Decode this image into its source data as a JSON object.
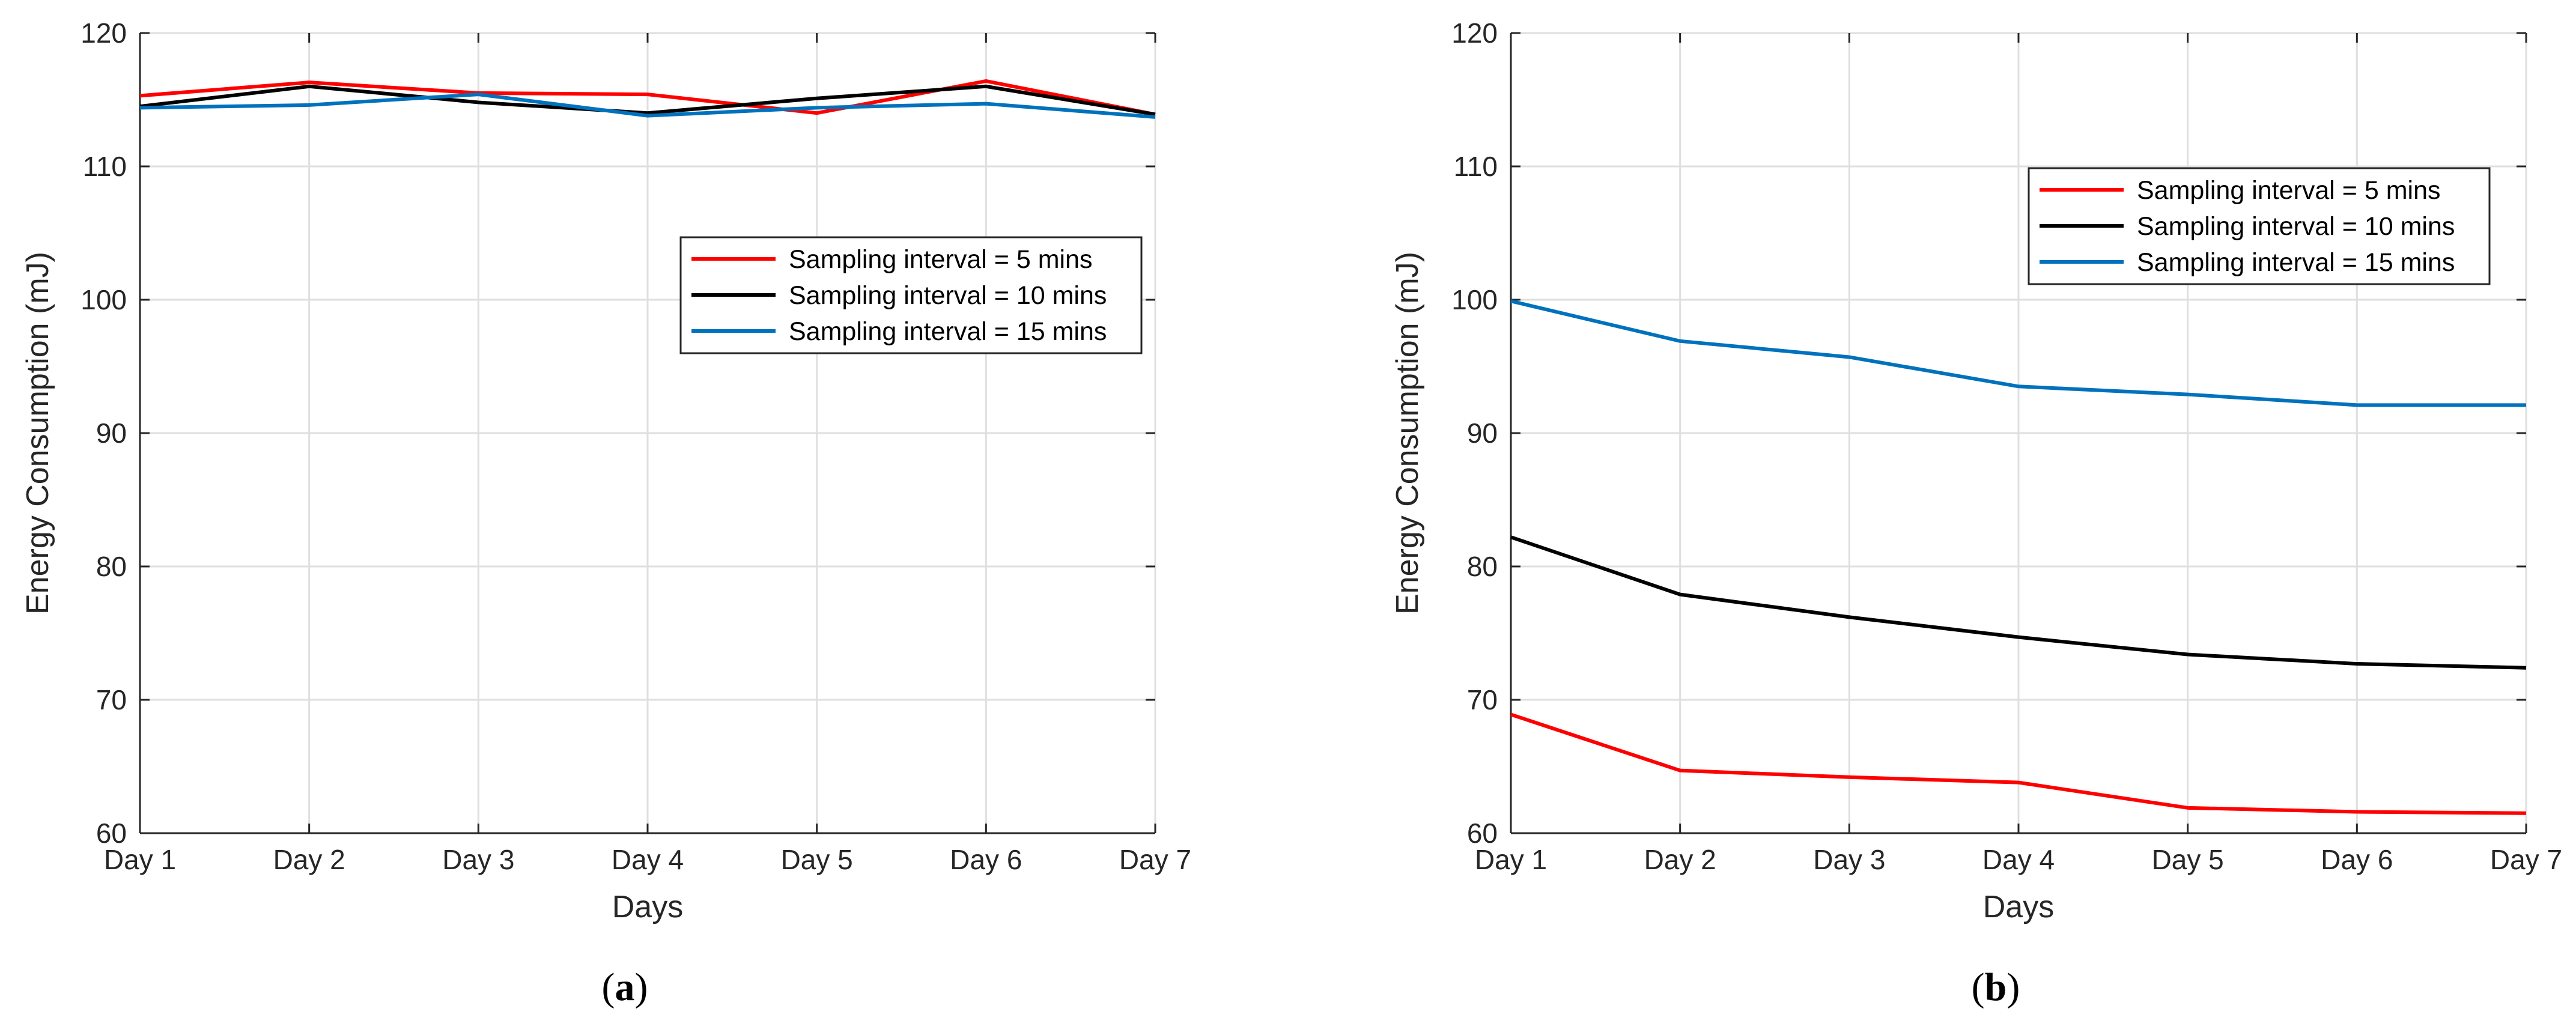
{
  "chart_data": [
    {
      "type": "line",
      "caption_letter": "a",
      "caption_open": "(",
      "caption_close": ")",
      "xlabel": "Days",
      "ylabel": "Energy Consumption (mJ)",
      "categories": [
        "Day 1",
        "Day 2",
        "Day 3",
        "Day 4",
        "Day 5",
        "Day 6",
        "Day 7"
      ],
      "ylim": [
        60,
        120
      ],
      "yticks": [
        "60",
        "70",
        "80",
        "90",
        "100",
        "110",
        "120"
      ],
      "grid": true,
      "legend_position": "center-right",
      "series": [
        {
          "name": "Sampling interval = 5 mins",
          "color": "#ff0000",
          "values": [
            115.3,
            116.3,
            115.5,
            115.4,
            114.0,
            116.4,
            113.9
          ]
        },
        {
          "name": "Sampling interval = 10 mins",
          "color": "#000000",
          "values": [
            114.5,
            116.0,
            114.8,
            114.0,
            115.1,
            116.0,
            113.9
          ]
        },
        {
          "name": "Sampling interval = 15 mins",
          "color": "#0072bd",
          "values": [
            114.4,
            114.6,
            115.4,
            113.8,
            114.4,
            114.7,
            113.7
          ]
        }
      ]
    },
    {
      "type": "line",
      "caption_letter": "b",
      "caption_open": "(",
      "caption_close": ")",
      "xlabel": "Days",
      "ylabel": "Energy Consumption (mJ)",
      "categories": [
        "Day 1",
        "Day 2",
        "Day 3",
        "Day 4",
        "Day 5",
        "Day 6",
        "Day 7"
      ],
      "ylim": [
        60,
        120
      ],
      "yticks": [
        "60",
        "70",
        "80",
        "90",
        "100",
        "110",
        "120"
      ],
      "grid": true,
      "legend_position": "top-right",
      "series": [
        {
          "name": "Sampling interval = 5 mins",
          "color": "#ff0000",
          "values": [
            68.9,
            64.7,
            64.2,
            63.8,
            61.9,
            61.6,
            61.5
          ]
        },
        {
          "name": "Sampling interval = 10 mins",
          "color": "#000000",
          "values": [
            82.2,
            77.9,
            76.2,
            74.7,
            73.4,
            72.7,
            72.4
          ]
        },
        {
          "name": "Sampling interval = 15 mins",
          "color": "#0072bd",
          "values": [
            99.9,
            96.9,
            95.7,
            93.5,
            92.9,
            92.1,
            92.1
          ]
        }
      ]
    }
  ]
}
